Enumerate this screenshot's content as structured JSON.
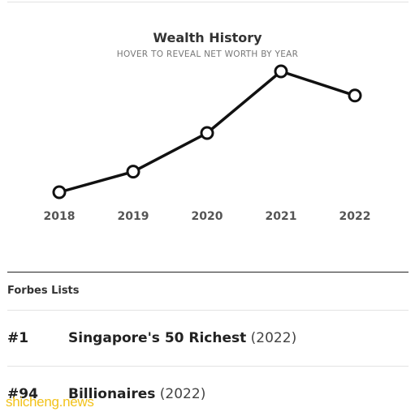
{
  "chart": {
    "title": "Wealth History",
    "subtitle": "HOVER TO REVEAL NET WORTH BY YEAR"
  },
  "chart_data": {
    "type": "line",
    "title": "Wealth History",
    "subtitle": "HOVER TO REVEAL NET WORTH BY YEAR",
    "x": [
      "2018",
      "2019",
      "2020",
      "2021",
      "2022"
    ],
    "series": [
      {
        "values": [
          0.0,
          0.17,
          0.49,
          1.0,
          0.8
        ]
      }
    ],
    "ylim": [
      0,
      1
    ],
    "grid": false,
    "line_color": "#111111",
    "marker_fill": "#ffffff"
  },
  "forbes": {
    "heading": "Forbes Lists",
    "lists": [
      {
        "rank": "#1",
        "name": "Singapore's 50 Richest",
        "year": "(2022)"
      },
      {
        "rank": "#94",
        "name": "Billionaires",
        "year": "(2022)"
      }
    ]
  },
  "watermark": "shicheng.news"
}
